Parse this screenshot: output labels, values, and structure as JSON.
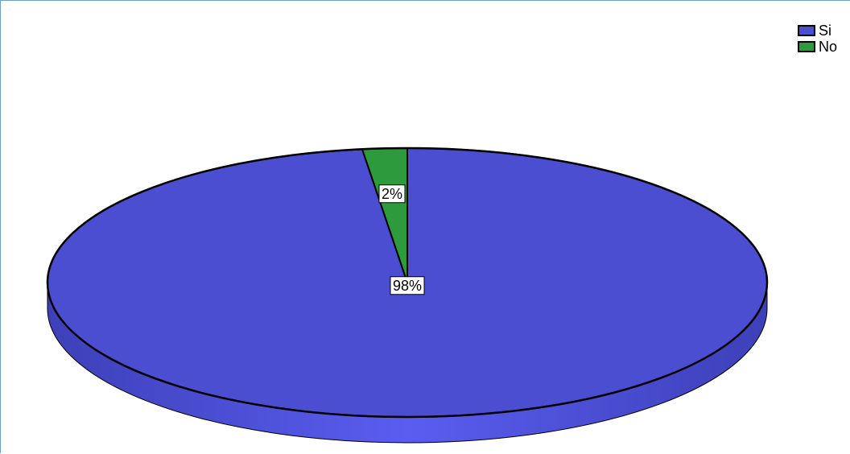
{
  "chart_data": {
    "type": "pie",
    "style": "3d",
    "categories": [
      "Si",
      "No"
    ],
    "values": [
      98,
      2
    ],
    "data_labels": [
      "98%",
      "2%"
    ],
    "colors": [
      "#4b4ed0",
      "#2e9a3e"
    ],
    "side_colors": [
      "#5457e6",
      "#237a2f"
    ],
    "legend": {
      "position": "top-right",
      "entries": [
        "Si",
        "No"
      ]
    }
  }
}
